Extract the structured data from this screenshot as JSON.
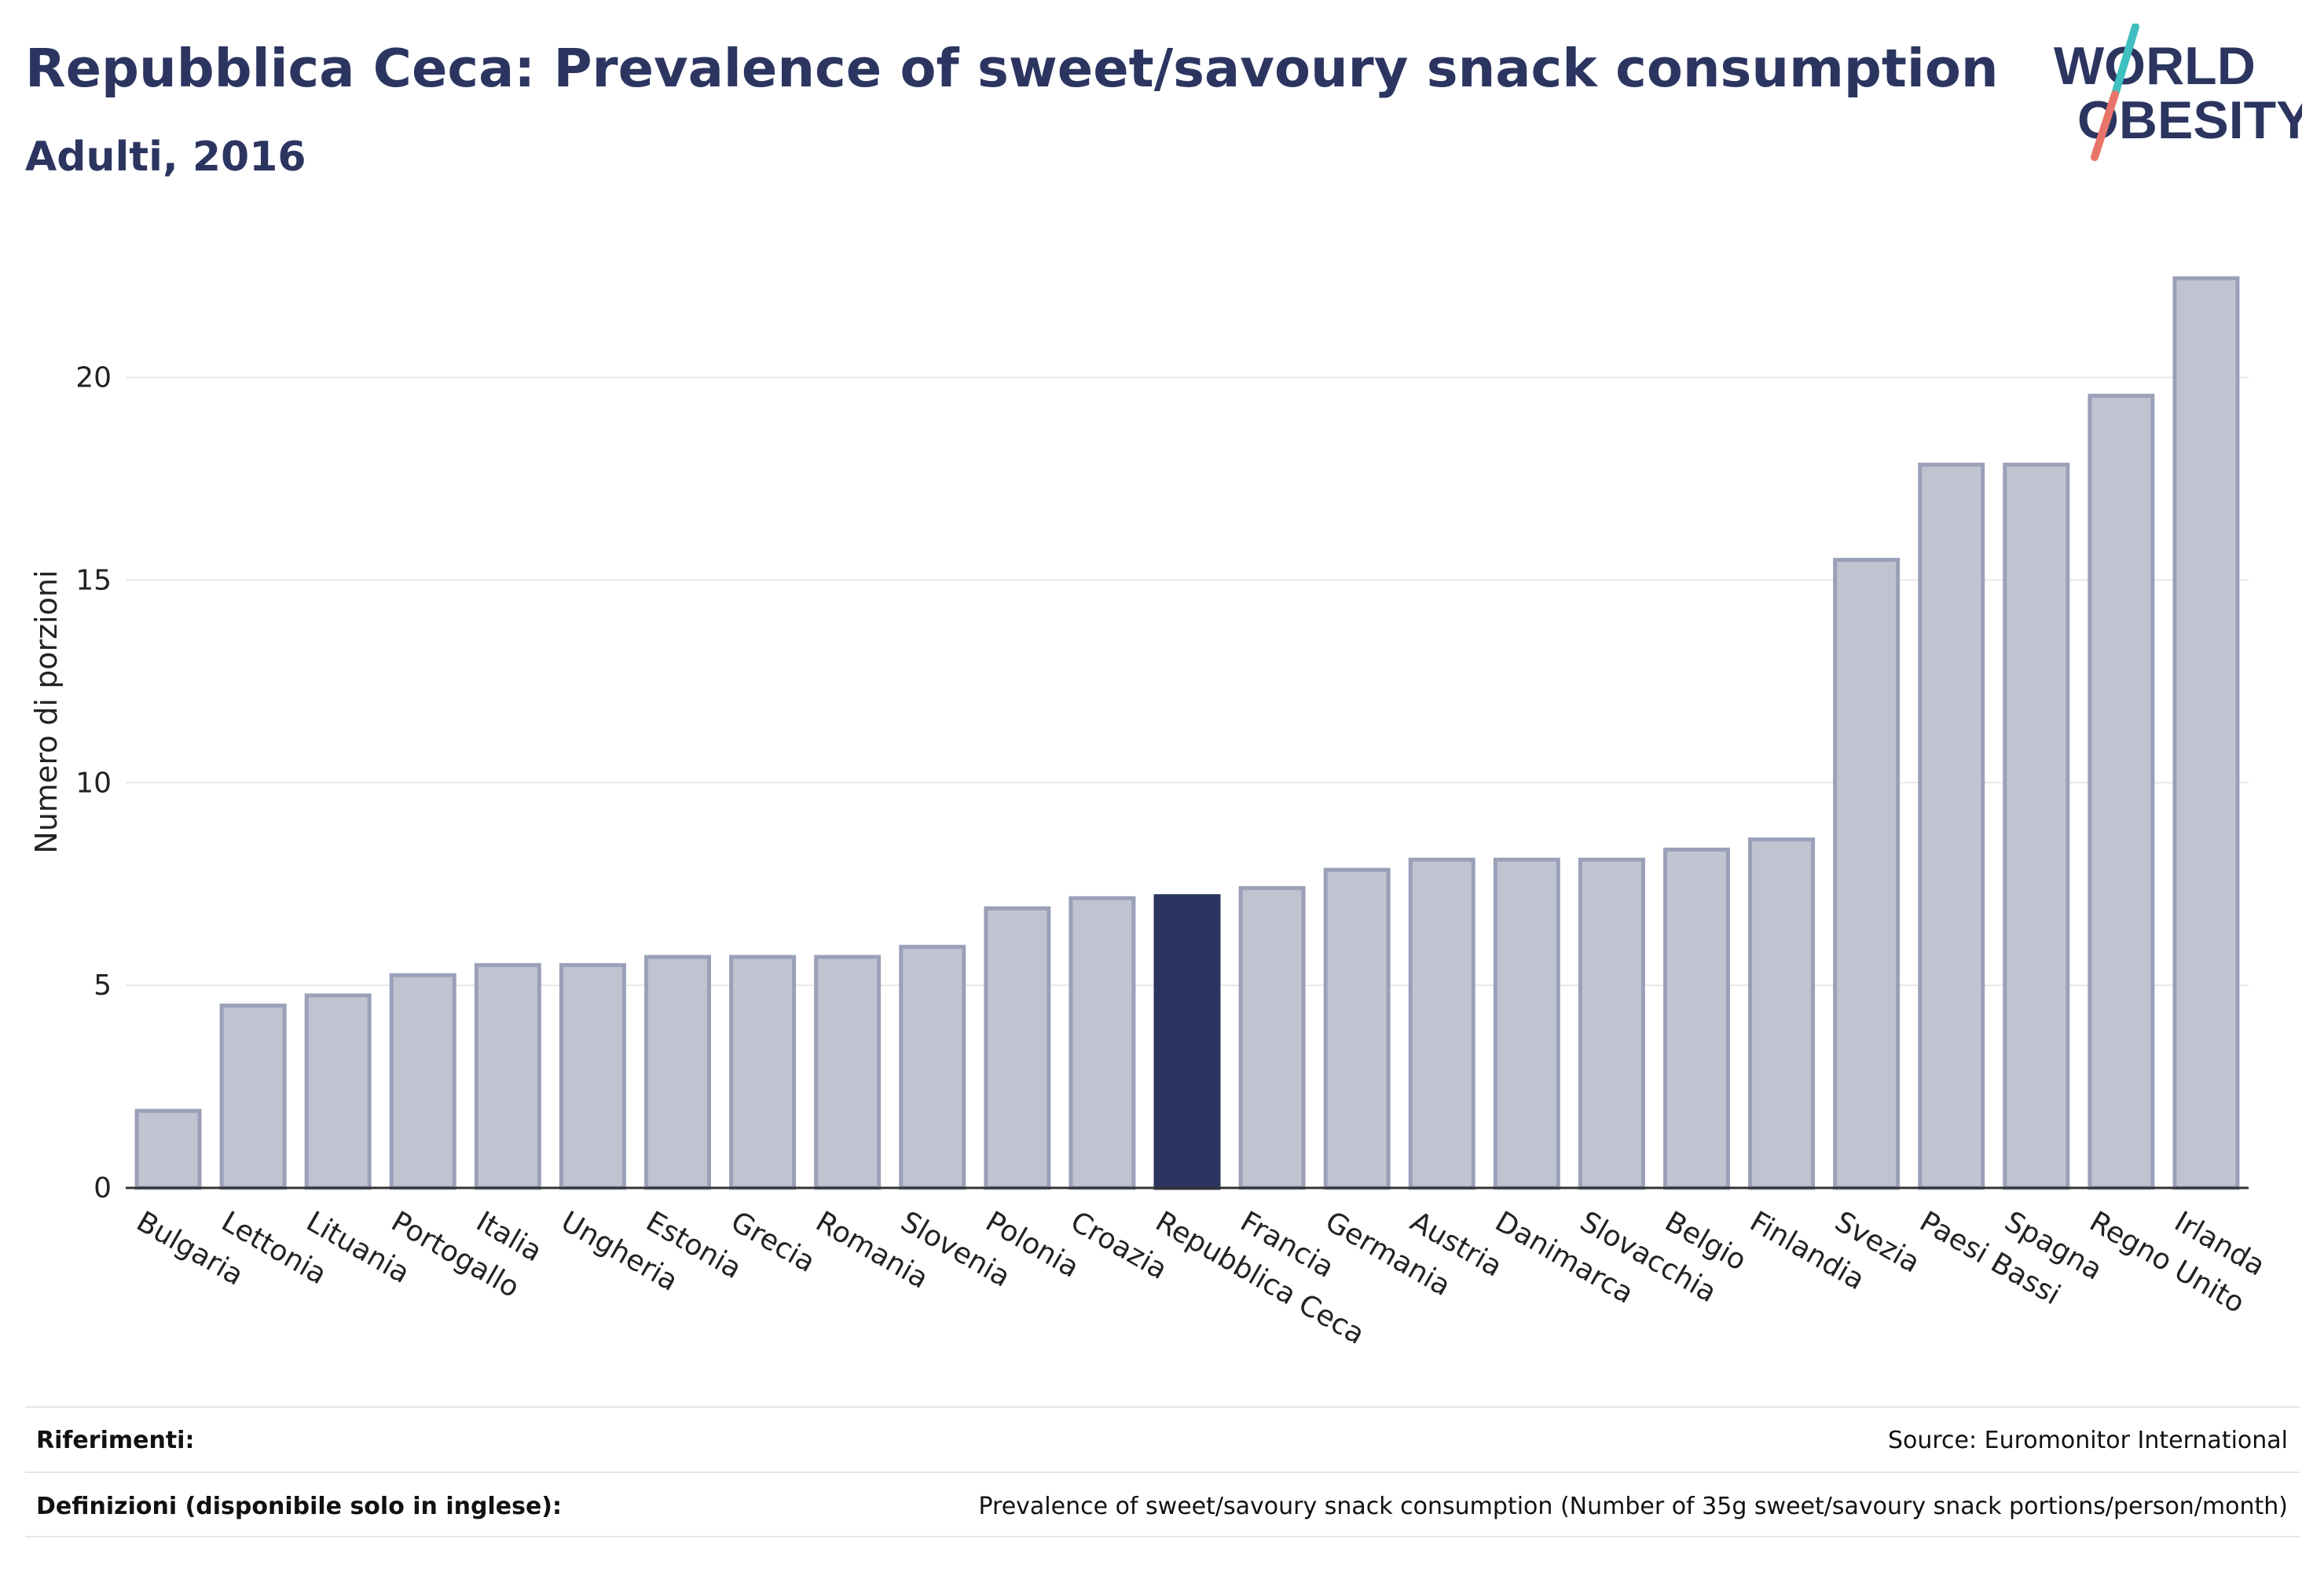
{
  "header": {
    "title": "Repubblica Ceca: Prevalence of sweet/savoury snack consumption",
    "subtitle": "Adulti, 2016"
  },
  "logo": {
    "line1": "WORLD",
    "line2": "OBESITY"
  },
  "chart_data": {
    "type": "bar",
    "title": "Repubblica Ceca: Prevalence of sweet/savoury snack consumption",
    "subtitle": "Adulti, 2016",
    "xlabel": "",
    "ylabel": "Numero di porzioni",
    "ylim": [
      0,
      23.5
    ],
    "yticks": [
      0,
      5,
      10,
      15,
      20
    ],
    "grid": true,
    "highlight": "Repubblica Ceca",
    "categories": [
      "Bulgaria",
      "Lettonia",
      "Lituania",
      "Portogallo",
      "Italia",
      "Ungheria",
      "Estonia",
      "Grecia",
      "Romania",
      "Slovenia",
      "Polonia",
      "Croazia",
      "Repubblica Ceca",
      "Francia",
      "Germania",
      "Austria",
      "Danimarca",
      "Slovacchia",
      "Belgio",
      "Finlandia",
      "Svezia",
      "Paesi Bassi",
      "Spagna",
      "Regno Unito",
      "Irlanda"
    ],
    "values": [
      1.9,
      4.5,
      4.75,
      5.25,
      5.5,
      5.5,
      5.7,
      5.7,
      5.7,
      5.95,
      6.9,
      7.15,
      7.2,
      7.4,
      7.85,
      8.1,
      8.1,
      8.1,
      8.35,
      8.6,
      15.5,
      17.85,
      17.85,
      19.55,
      22.45
    ]
  },
  "colors": {
    "bar": "#c0c3d0",
    "bar_border": "#9aa0b8",
    "highlight": "#2b3560",
    "text_dark": "#2b3560",
    "logo_teal": "#3fbfbf",
    "logo_coral": "#e8746a"
  },
  "footer": {
    "references_label": "Riferimenti:",
    "references_value": "Source: Euromonitor International",
    "definitions_label": "Definizioni (disponibile solo in inglese):",
    "definitions_value": "Prevalence of sweet/savoury snack consumption (Number of 35g sweet/savoury snack portions/person/month)"
  }
}
